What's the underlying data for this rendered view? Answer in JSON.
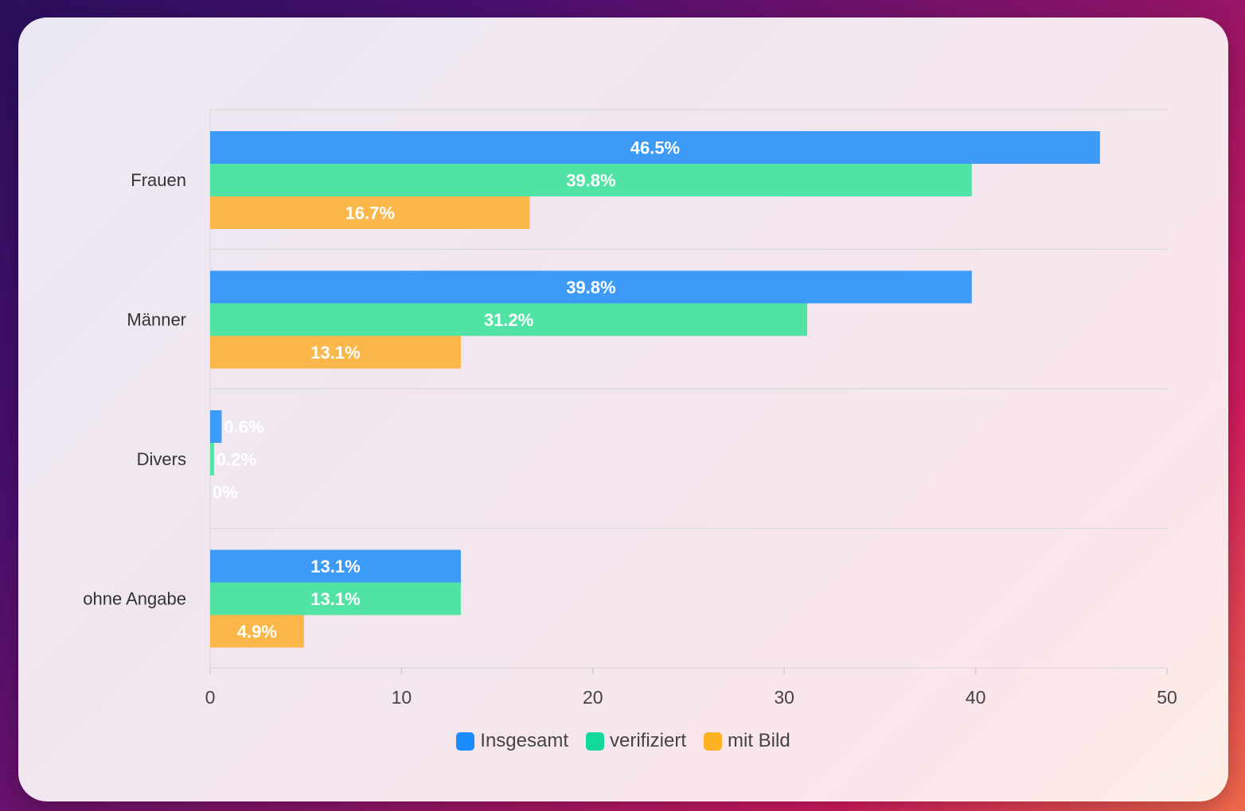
{
  "chart_data": {
    "type": "bar",
    "orientation": "horizontal",
    "categories": [
      "Frauen",
      "Männer",
      "Divers",
      "ohne Angabe"
    ],
    "series": [
      {
        "name": "Insgesamt",
        "color": "#3d9bf7",
        "legend_color": "#1a8cff",
        "values": [
          46.5,
          39.8,
          0.6,
          13.1
        ],
        "labels": [
          "46.5%",
          "39.8%",
          "0.6%",
          "13.1%"
        ]
      },
      {
        "name": "verifiziert",
        "color": "#50e3a4",
        "legend_color": "#12d99a",
        "values": [
          39.8,
          31.2,
          0.2,
          13.1
        ],
        "labels": [
          "39.8%",
          "31.2%",
          "0.2%",
          "13.1%"
        ]
      },
      {
        "name": "mit Bild",
        "color": "#fbb749",
        "legend_color": "#ffb224",
        "values": [
          16.7,
          13.1,
          0,
          4.9
        ],
        "labels": [
          "16.7%",
          "13.1%",
          "0%",
          "4.9%"
        ]
      }
    ],
    "xlim": [
      0,
      50
    ],
    "xticks": [
      "0",
      "10",
      "20",
      "30",
      "40",
      "50"
    ],
    "grid": true,
    "legend_position": "bottom-center"
  }
}
